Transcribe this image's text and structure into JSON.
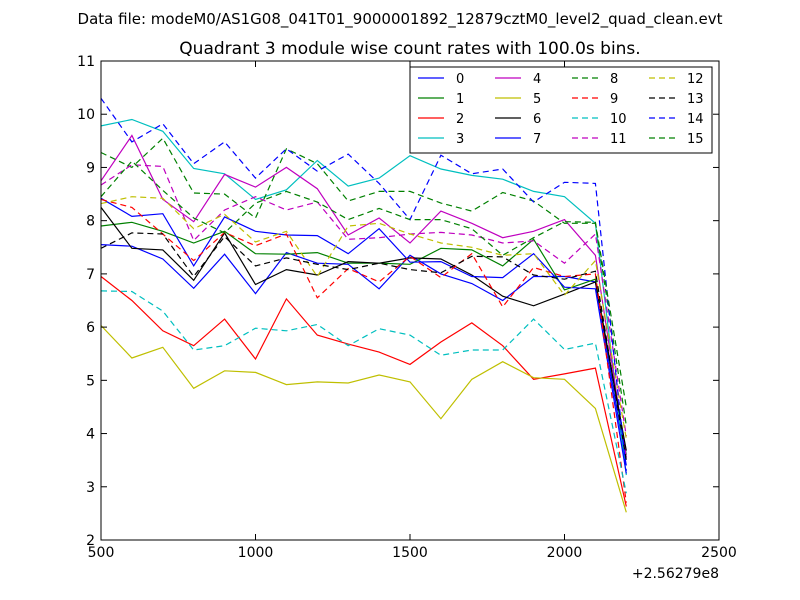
{
  "suptitle": "Data file: modeM0/AS1G08_041T01_9000001892_12879cztM0_level2_quad_clean.evt",
  "chart_data": {
    "type": "line",
    "title": "Quadrant 3 module wise count rates with 100.0s bins.",
    "xlabel": "",
    "ylabel": "",
    "x_offset_label": "+2.56279e8",
    "xlim": [
      500,
      2500
    ],
    "ylim": [
      2,
      11
    ],
    "xticks": [
      "500",
      "1000",
      "1500",
      "2000",
      "2500"
    ],
    "yticks": [
      "2",
      "3",
      "4",
      "5",
      "6",
      "7",
      "8",
      "9",
      "10",
      "11"
    ],
    "grid": false,
    "legend_position": "top-right",
    "x": [
      500,
      600,
      700,
      800,
      900,
      1000,
      1100,
      1200,
      1300,
      1400,
      1500,
      1600,
      1700,
      1800,
      1900,
      2000,
      2100,
      2200
    ],
    "series": [
      {
        "name": "0",
        "color": "#0000ff",
        "dash": "solid",
        "values": [
          7.55,
          7.52,
          7.28,
          6.73,
          7.37,
          6.63,
          7.4,
          7.2,
          7.18,
          6.72,
          7.35,
          7.0,
          6.82,
          6.5,
          6.95,
          6.95,
          6.85,
          3.4
        ]
      },
      {
        "name": "1",
        "color": "#008000",
        "dash": "solid",
        "values": [
          7.9,
          7.97,
          7.8,
          7.58,
          7.8,
          7.38,
          7.37,
          7.4,
          7.2,
          7.2,
          7.18,
          7.48,
          7.45,
          7.15,
          7.65,
          6.7,
          6.9,
          3.6
        ]
      },
      {
        "name": "2",
        "color": "#ff0000",
        "dash": "solid",
        "values": [
          6.95,
          6.5,
          5.93,
          5.65,
          6.15,
          5.4,
          6.53,
          5.85,
          5.68,
          5.53,
          5.3,
          5.72,
          6.08,
          5.65,
          5.02,
          5.12,
          5.23,
          2.63
        ]
      },
      {
        "name": "3",
        "color": "#00bfbf",
        "dash": "solid",
        "values": [
          9.78,
          9.9,
          9.68,
          8.98,
          8.88,
          8.4,
          8.58,
          9.13,
          8.65,
          8.8,
          9.22,
          8.97,
          8.85,
          8.78,
          8.55,
          8.45,
          7.95,
          3.22
        ]
      },
      {
        "name": "4",
        "color": "#bf00bf",
        "dash": "solid",
        "values": [
          8.75,
          9.6,
          8.4,
          7.98,
          8.87,
          8.63,
          9.0,
          8.6,
          7.73,
          8.05,
          7.58,
          8.18,
          7.95,
          7.68,
          7.8,
          8.02,
          7.35,
          3.55
        ]
      },
      {
        "name": "5",
        "color": "#bfbf00",
        "dash": "solid",
        "values": [
          6.03,
          5.42,
          5.62,
          4.85,
          5.18,
          5.15,
          4.92,
          4.97,
          4.95,
          5.1,
          4.97,
          4.28,
          5.02,
          5.35,
          5.05,
          5.02,
          4.47,
          2.52
        ]
      },
      {
        "name": "6",
        "color": "#000000",
        "dash": "solid",
        "values": [
          8.25,
          7.48,
          7.45,
          6.88,
          7.77,
          6.8,
          7.08,
          6.98,
          7.23,
          7.2,
          7.3,
          7.28,
          6.98,
          6.58,
          6.4,
          6.62,
          6.85,
          3.68
        ]
      },
      {
        "name": "7",
        "color": "#0000ff",
        "dash": "solid",
        "values": [
          8.42,
          8.08,
          8.13,
          7.15,
          8.07,
          7.8,
          7.73,
          7.72,
          7.38,
          7.85,
          7.22,
          7.23,
          6.95,
          6.93,
          7.38,
          6.75,
          6.72,
          3.25
        ]
      },
      {
        "name": "8",
        "color": "#008000",
        "dash": "dashed",
        "values": [
          9.28,
          9.0,
          9.55,
          8.52,
          8.5,
          8.05,
          9.35,
          9.07,
          8.37,
          8.55,
          8.55,
          8.33,
          8.18,
          8.53,
          8.37,
          7.95,
          7.95,
          4.15
        ]
      },
      {
        "name": "9",
        "color": "#ff0000",
        "dash": "dashed",
        "values": [
          8.4,
          8.25,
          7.75,
          7.25,
          7.78,
          7.53,
          7.75,
          6.55,
          7.1,
          6.85,
          7.33,
          6.93,
          7.38,
          6.38,
          7.12,
          6.95,
          7.0,
          2.7
        ]
      },
      {
        "name": "10",
        "color": "#00bfbf",
        "dash": "dashed",
        "values": [
          6.68,
          6.67,
          6.3,
          5.57,
          5.65,
          5.98,
          5.93,
          6.05,
          5.65,
          5.97,
          5.85,
          5.47,
          5.57,
          5.57,
          6.15,
          5.58,
          5.7,
          2.88
        ]
      },
      {
        "name": "11",
        "color": "#bf00bf",
        "dash": "dashed",
        "values": [
          8.67,
          9.05,
          9.02,
          7.63,
          8.2,
          8.45,
          8.2,
          8.35,
          7.65,
          7.68,
          7.75,
          7.78,
          7.73,
          7.58,
          7.62,
          7.2,
          7.75,
          3.95
        ]
      },
      {
        "name": "12",
        "color": "#bfbf00",
        "dash": "dashed",
        "values": [
          8.32,
          8.45,
          8.42,
          7.85,
          8.12,
          7.6,
          7.8,
          6.95,
          7.9,
          7.95,
          7.75,
          7.58,
          7.5,
          7.35,
          7.38,
          6.6,
          7.25,
          3.9
        ]
      },
      {
        "name": "13",
        "color": "#000000",
        "dash": "dashed",
        "values": [
          7.48,
          7.77,
          7.75,
          6.95,
          7.7,
          7.15,
          7.3,
          7.18,
          7.08,
          7.2,
          7.08,
          7.02,
          7.33,
          7.32,
          6.98,
          6.9,
          7.05,
          3.5
        ]
      },
      {
        "name": "14",
        "color": "#0000ff",
        "dash": "dashed",
        "values": [
          10.3,
          9.48,
          9.82,
          9.07,
          9.48,
          8.8,
          9.35,
          8.93,
          9.25,
          8.7,
          8.02,
          9.23,
          8.88,
          8.97,
          8.35,
          8.72,
          8.7,
          3.3
        ]
      },
      {
        "name": "15",
        "color": "#008000",
        "dash": "dashed",
        "values": [
          8.45,
          9.12,
          8.57,
          8.05,
          7.77,
          8.33,
          8.55,
          8.35,
          8.02,
          8.23,
          8.02,
          8.02,
          7.85,
          7.35,
          7.68,
          7.98,
          7.97,
          4.5
        ]
      }
    ]
  }
}
